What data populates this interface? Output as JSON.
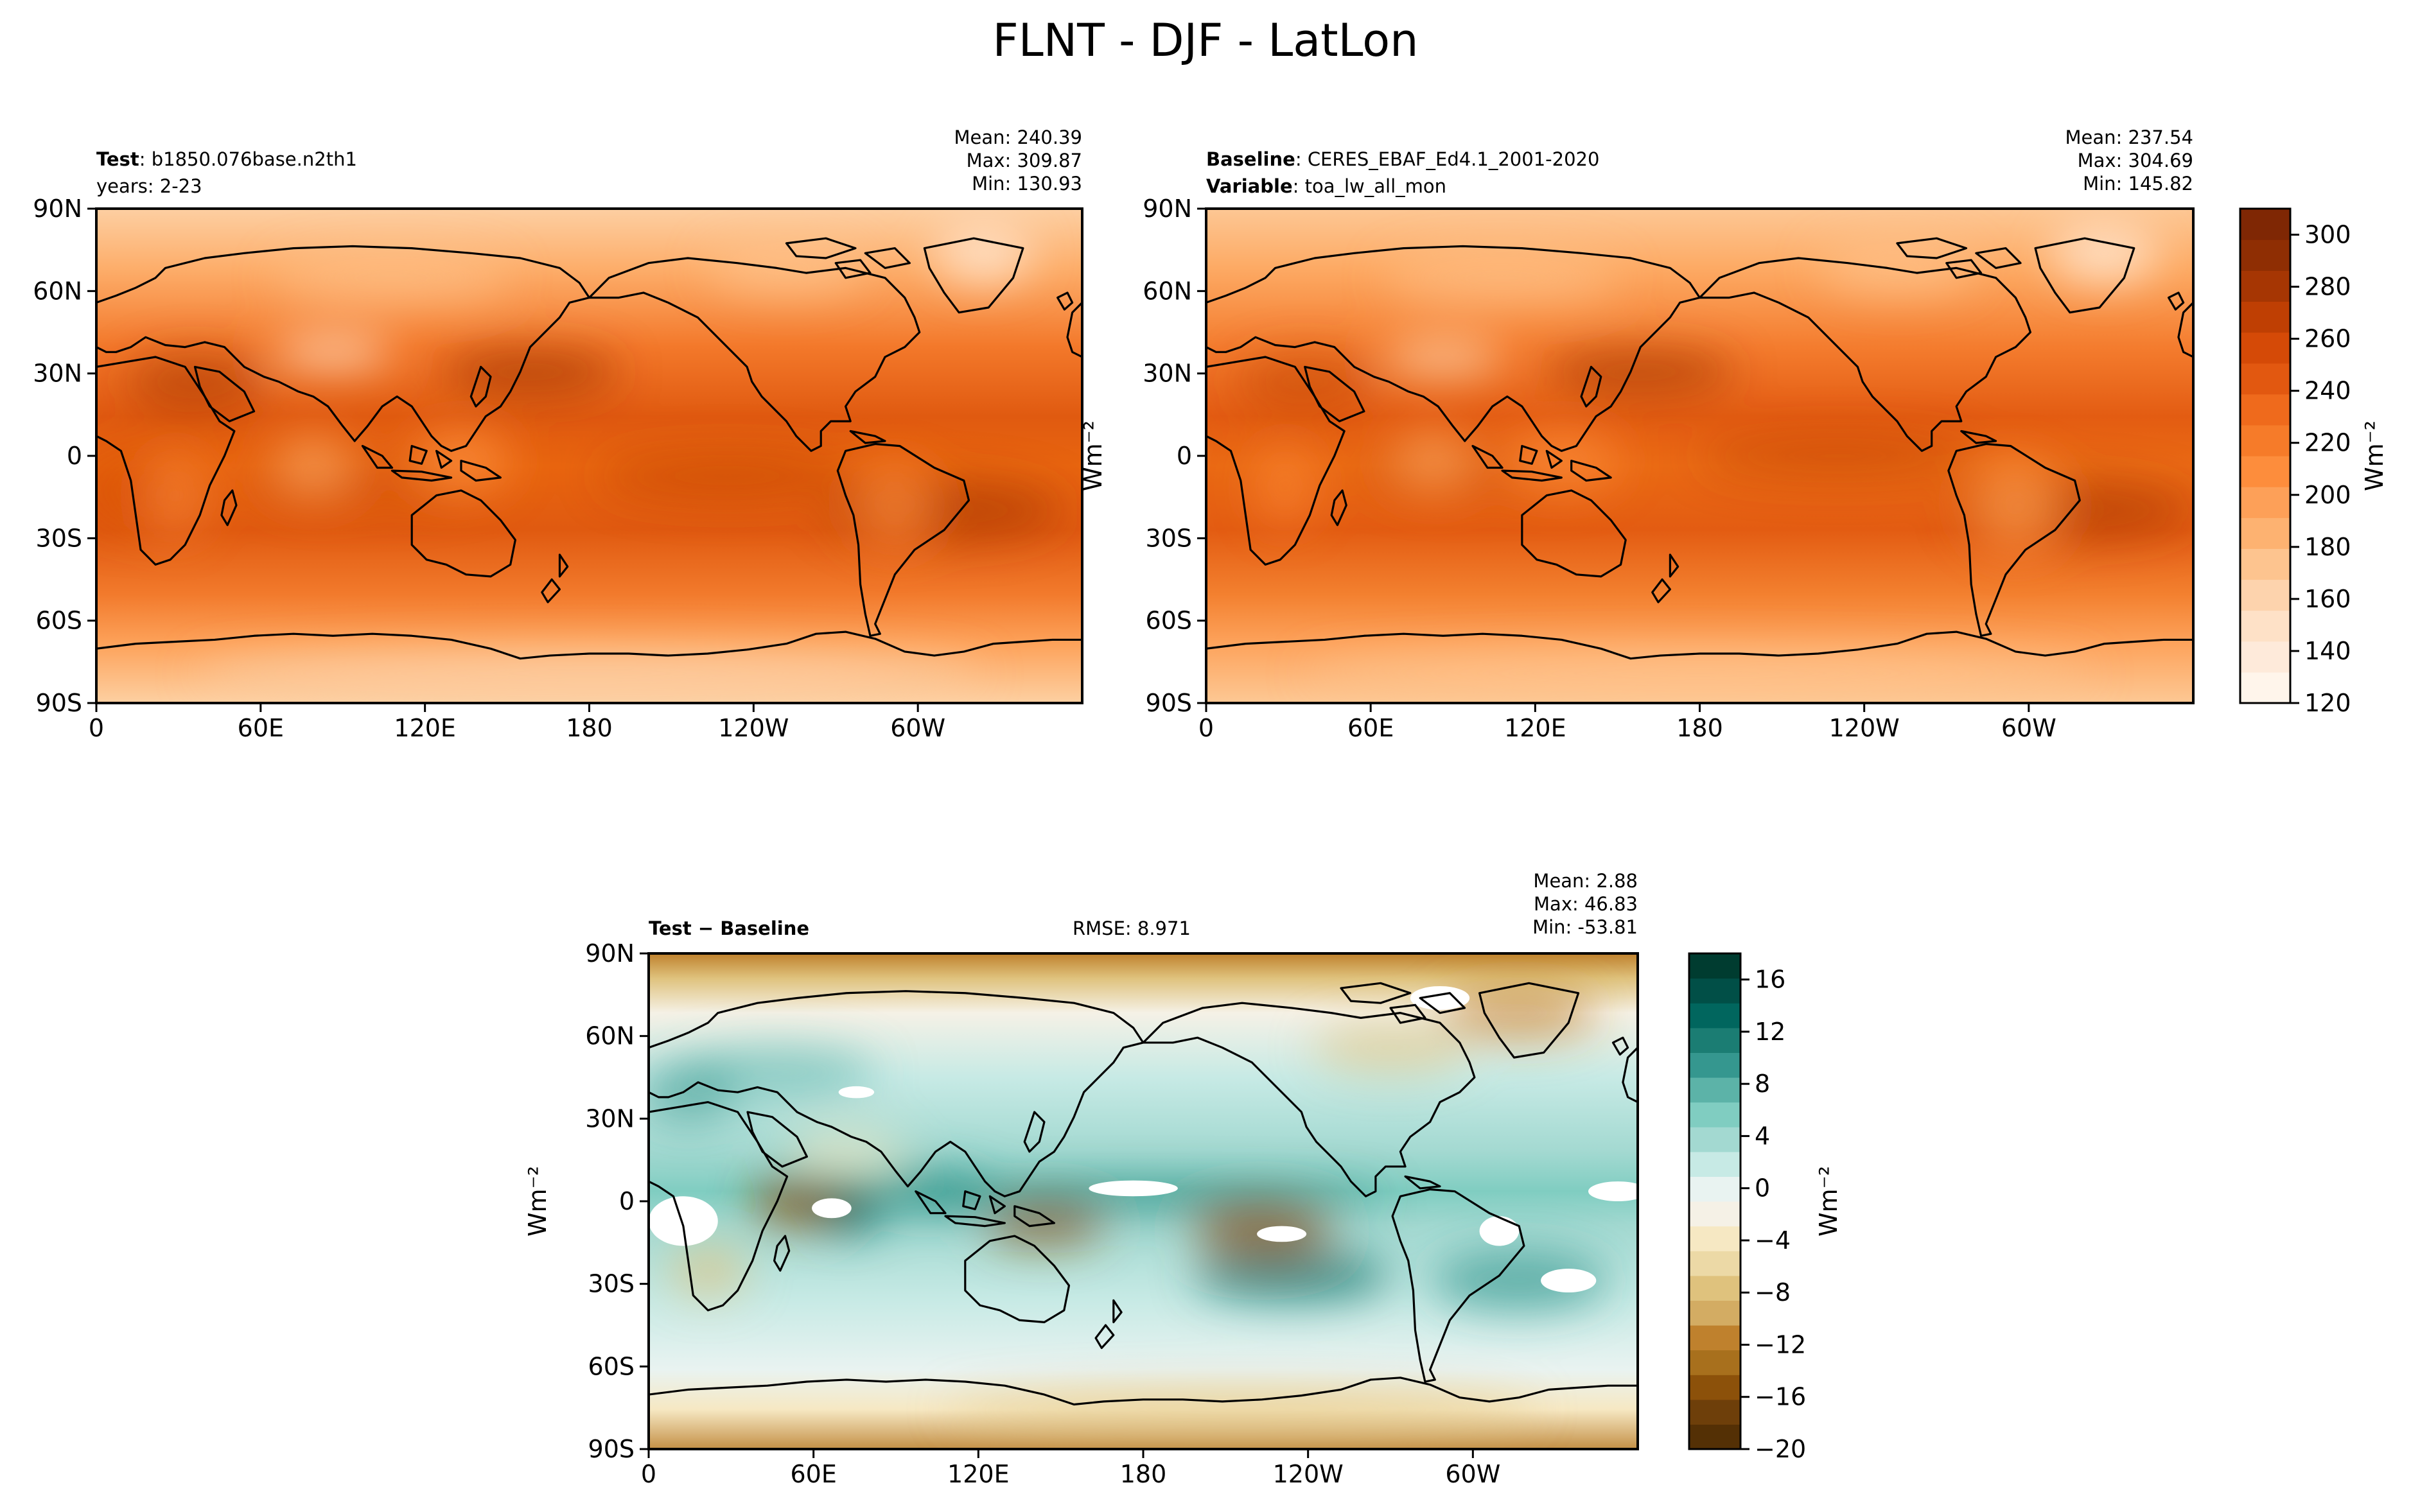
{
  "figure": {
    "title": "FLNT - DJF - LatLon"
  },
  "test_panel": {
    "label_bold": "Test",
    "label": "b1850.076base.n2th1",
    "line2": "years: 2-23",
    "stats": [
      "Mean: 240.39",
      "Max: 309.87",
      "Min: 130.93"
    ]
  },
  "baseline_panel": {
    "label_bold": "Baseline",
    "label": "CERES_EBAF_Ed4.1_2001-2020",
    "line2_bold": "Variable",
    "line2": "toa_lw_all_mon",
    "stats": [
      "Mean: 237.54",
      "Max: 304.69",
      "Min: 145.82"
    ]
  },
  "diff_panel": {
    "label_bold": "Test − Baseline",
    "rmse": "RMSE: 8.971",
    "stats": [
      "Mean:  2.88",
      "Max: 46.83",
      "Min: -53.81"
    ]
  },
  "units": "Wm⁻²",
  "map_axes": {
    "xticks": [
      "0",
      "60E",
      "120E",
      "180",
      "120W",
      "60W"
    ],
    "yticks": [
      "90N",
      "60N",
      "30N",
      "0",
      "30S",
      "60S",
      "90S"
    ]
  },
  "colorbar_main": {
    "ticks": [
      "300",
      "280",
      "260",
      "240",
      "220",
      "200",
      "180",
      "160",
      "140",
      "120"
    ],
    "range": [
      120,
      310
    ],
    "colors": [
      "#fff5eb",
      "#feeada",
      "#fee1c7",
      "#fdd3ad",
      "#fdc48f",
      "#fdb271",
      "#fda058",
      "#fd8d3c",
      "#f67b29",
      "#ef6a1c",
      "#e25810",
      "#d54a07",
      "#bf3f03",
      "#a63603",
      "#8f2e03",
      "#7f2704"
    ]
  },
  "colorbar_diff": {
    "ticks": [
      "16",
      "12",
      "8",
      "4",
      "0",
      "−4",
      "−8",
      "−12",
      "−16",
      "−20"
    ],
    "range": [
      -20,
      18
    ],
    "colors": [
      "#543005",
      "#6e3f0a",
      "#8c510a",
      "#a8701d",
      "#bf812d",
      "#d3ac63",
      "#dfc27d",
      "#ecd9a6",
      "#f6e8c3",
      "#f5f1e6",
      "#e9f3f1",
      "#c7eae5",
      "#a3d9d1",
      "#80cdc1",
      "#5cb3a8",
      "#35978f",
      "#1b7d73",
      "#01665e",
      "#014f47",
      "#003c30"
    ]
  },
  "chart_data": [
    {
      "type": "heatmap",
      "title": "Test",
      "xticks": [
        "0",
        "60E",
        "120E",
        "180",
        "120W",
        "60W"
      ],
      "yticks": [
        "90N",
        "60N",
        "30N",
        "0",
        "30S",
        "60S",
        "90S"
      ],
      "mean": 240.39,
      "max": 309.87,
      "min": 130.93,
      "zlim": [
        120,
        310
      ]
    },
    {
      "type": "heatmap",
      "title": "Baseline",
      "xticks": [
        "0",
        "60E",
        "120E",
        "180",
        "120W",
        "60W"
      ],
      "yticks": [
        "90N",
        "60N",
        "30N",
        "0",
        "30S",
        "60S",
        "90S"
      ],
      "mean": 237.54,
      "max": 304.69,
      "min": 145.82,
      "zlim": [
        120,
        310
      ]
    },
    {
      "type": "heatmap",
      "title": "Test − Baseline",
      "xticks": [
        "0",
        "60E",
        "120E",
        "180",
        "120W",
        "60W"
      ],
      "yticks": [
        "90N",
        "60N",
        "30N",
        "0",
        "30S",
        "60S",
        "90S"
      ],
      "mean": 2.88,
      "max": 46.83,
      "min": -53.81,
      "rmse": 8.971,
      "zlim": [
        -20,
        18
      ]
    }
  ]
}
